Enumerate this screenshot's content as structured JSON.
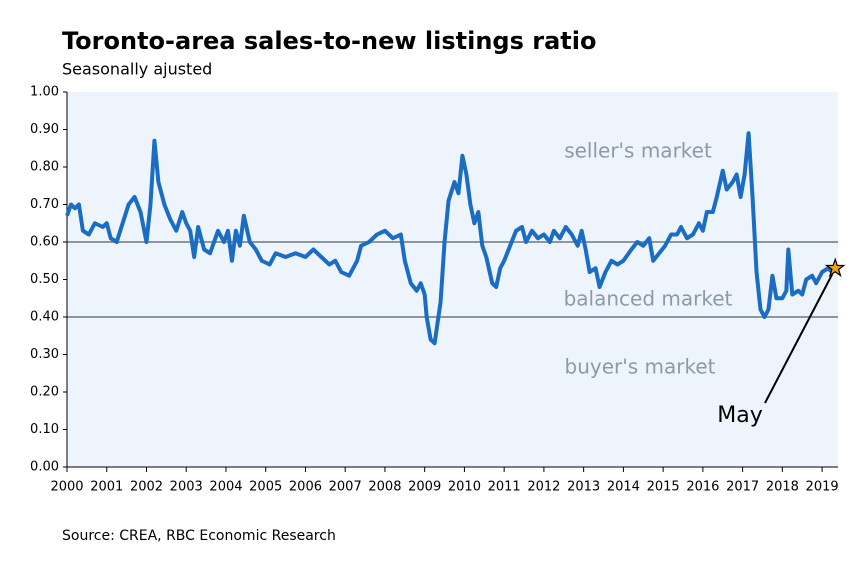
{
  "chart_data": {
    "type": "line",
    "title": "Toronto-area sales-to-new listings ratio",
    "subtitle": "Seasonally ajusted",
    "source": "Source: CREA, RBC Economic Research",
    "annotations": [
      "seller's market",
      "balanced market",
      "buyer's market",
      "May"
    ],
    "reference_lines": [
      0.6,
      0.4
    ],
    "reference_color": "#8c969e",
    "background": "#eef4fb",
    "xlim": [
      2000,
      2019.4
    ],
    "xticks": [
      2000,
      2001,
      2002,
      2003,
      2004,
      2005,
      2006,
      2007,
      2008,
      2009,
      2010,
      2011,
      2012,
      2013,
      2014,
      2015,
      2016,
      2017,
      2018,
      2019
    ],
    "ylim": [
      0,
      1
    ],
    "yticks": [
      {
        "value": 0,
        "label": "0.00"
      },
      {
        "value": 0.1,
        "label": "0.10"
      },
      {
        "value": 0.2,
        "label": "0.20"
      },
      {
        "value": 0.3,
        "label": "0.30"
      },
      {
        "value": 0.4,
        "label": "0.40"
      },
      {
        "value": 0.5,
        "label": "0.50"
      },
      {
        "value": 0.6,
        "label": "0.60"
      },
      {
        "value": 0.7,
        "label": "0.70"
      },
      {
        "value": 0.8,
        "label": "0.80"
      },
      {
        "value": 0.9,
        "label": "0.90"
      },
      {
        "value": 1,
        "label": "1.00"
      }
    ],
    "grid": false,
    "series": [
      {
        "color": "#1a6dc2",
        "x": [
          2000.0,
          2000.1,
          2000.2,
          2000.3,
          2000.4,
          2000.55,
          2000.7,
          2000.9,
          2001.0,
          2001.1,
          2001.25,
          2001.4,
          2001.55,
          2001.7,
          2001.85,
          2002.0,
          2002.1,
          2002.2,
          2002.3,
          2002.45,
          2002.6,
          2002.75,
          2002.9,
          2003.0,
          2003.1,
          2003.2,
          2003.3,
          2003.45,
          2003.6,
          2003.8,
          2003.95,
          2004.05,
          2004.15,
          2004.25,
          2004.35,
          2004.45,
          2004.6,
          2004.75,
          2004.9,
          2005.1,
          2005.25,
          2005.5,
          2005.75,
          2006.0,
          2006.2,
          2006.4,
          2006.6,
          2006.75,
          2006.9,
          2007.1,
          2007.3,
          2007.4,
          2007.6,
          2007.8,
          2008.0,
          2008.2,
          2008.4,
          2008.5,
          2008.65,
          2008.8,
          2008.9,
          2009.0,
          2009.05,
          2009.15,
          2009.25,
          2009.4,
          2009.5,
          2009.6,
          2009.75,
          2009.85,
          2009.95,
          2010.05,
          2010.15,
          2010.25,
          2010.35,
          2010.45,
          2010.55,
          2010.7,
          2010.8,
          2010.9,
          2011.0,
          2011.15,
          2011.3,
          2011.45,
          2011.55,
          2011.7,
          2011.85,
          2012.0,
          2012.15,
          2012.25,
          2012.4,
          2012.55,
          2012.7,
          2012.85,
          2012.95,
          2013.05,
          2013.15,
          2013.3,
          2013.4,
          2013.55,
          2013.7,
          2013.85,
          2014.0,
          2014.2,
          2014.35,
          2014.5,
          2014.65,
          2014.75,
          2014.9,
          2015.05,
          2015.2,
          2015.35,
          2015.45,
          2015.6,
          2015.75,
          2015.9,
          2016.0,
          2016.1,
          2016.25,
          2016.35,
          2016.5,
          2016.6,
          2016.75,
          2016.85,
          2016.95,
          2017.05,
          2017.15,
          2017.25,
          2017.35,
          2017.45,
          2017.55,
          2017.65,
          2017.75,
          2017.85,
          2018.0,
          2018.1,
          2018.15,
          2018.25,
          2018.4,
          2018.5,
          2018.6,
          2018.75,
          2018.85,
          2019.0,
          2019.15,
          2019.25,
          2019.33
        ],
        "values": [
          0.67,
          0.7,
          0.69,
          0.7,
          0.63,
          0.62,
          0.65,
          0.64,
          0.65,
          0.61,
          0.6,
          0.65,
          0.7,
          0.72,
          0.68,
          0.6,
          0.7,
          0.87,
          0.76,
          0.7,
          0.66,
          0.63,
          0.68,
          0.65,
          0.63,
          0.56,
          0.64,
          0.58,
          0.57,
          0.63,
          0.6,
          0.63,
          0.55,
          0.63,
          0.59,
          0.67,
          0.6,
          0.58,
          0.55,
          0.54,
          0.57,
          0.56,
          0.57,
          0.56,
          0.58,
          0.56,
          0.54,
          0.55,
          0.52,
          0.51,
          0.55,
          0.59,
          0.6,
          0.62,
          0.63,
          0.61,
          0.62,
          0.55,
          0.49,
          0.47,
          0.49,
          0.46,
          0.4,
          0.34,
          0.33,
          0.44,
          0.6,
          0.71,
          0.76,
          0.73,
          0.83,
          0.78,
          0.7,
          0.65,
          0.68,
          0.59,
          0.56,
          0.49,
          0.48,
          0.53,
          0.55,
          0.59,
          0.63,
          0.64,
          0.6,
          0.63,
          0.61,
          0.62,
          0.6,
          0.63,
          0.61,
          0.64,
          0.62,
          0.59,
          0.63,
          0.58,
          0.52,
          0.53,
          0.48,
          0.52,
          0.55,
          0.54,
          0.55,
          0.58,
          0.6,
          0.59,
          0.61,
          0.55,
          0.57,
          0.59,
          0.62,
          0.62,
          0.64,
          0.61,
          0.62,
          0.65,
          0.63,
          0.68,
          0.68,
          0.72,
          0.79,
          0.74,
          0.76,
          0.78,
          0.72,
          0.78,
          0.89,
          0.72,
          0.52,
          0.42,
          0.4,
          0.42,
          0.51,
          0.45,
          0.45,
          0.47,
          0.58,
          0.46,
          0.47,
          0.46,
          0.5,
          0.51,
          0.49,
          0.52,
          0.53,
          0.52,
          0.53
        ]
      }
    ]
  }
}
